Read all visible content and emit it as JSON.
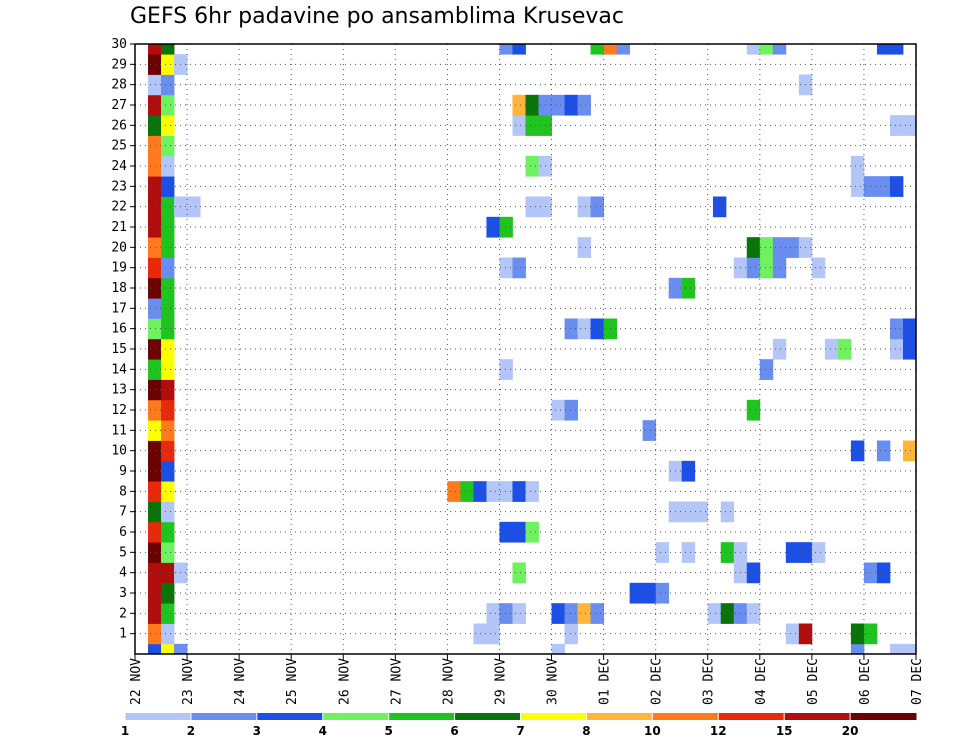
{
  "chart_data": {
    "type": "heatmap",
    "title": "GEFS 6hr padavine po ansamblima Krusevac",
    "xlabel": "",
    "ylabel": "",
    "x_ticks": [
      "22 NOV",
      "23 NOV",
      "24 NOV",
      "25 NOV",
      "26 NOV",
      "27 NOV",
      "28 NOV",
      "29 NOV",
      "30 NOV",
      "01 DEC",
      "02 DEC",
      "03 DEC",
      "04 DEC",
      "05 DEC",
      "06 DEC",
      "07 DEC"
    ],
    "x_range": [
      0,
      15
    ],
    "y_ticks": [
      1,
      2,
      3,
      4,
      5,
      6,
      7,
      8,
      9,
      10,
      11,
      12,
      13,
      14,
      15,
      16,
      17,
      18,
      19,
      20,
      21,
      22,
      23,
      24,
      25,
      26,
      27,
      28,
      29,
      30
    ],
    "y_range": [
      0,
      30
    ],
    "grid": true,
    "colorbar": {
      "labels": [
        "1",
        "2",
        "3",
        "4",
        "5",
        "6",
        "7",
        "8",
        "10",
        "12",
        "15",
        "20"
      ],
      "colors": [
        "#b3c6f7",
        "#6a8ef0",
        "#1b4fe6",
        "#6ef25f",
        "#1fc41f",
        "#0a730a",
        "#ffff00",
        "#ffb43a",
        "#ff7a1a",
        "#e62a0a",
        "#b00d0d",
        "#6b0303"
      ]
    },
    "cells": [
      {
        "t": 0.25,
        "m": 0,
        "v": 3
      },
      {
        "t": 0.5,
        "m": 0,
        "v": 7
      },
      {
        "t": 0.75,
        "m": 0,
        "v": 2
      },
      {
        "t": 0.25,
        "m": 1,
        "v": 10
      },
      {
        "t": 0.5,
        "m": 1,
        "v": 1
      },
      {
        "t": 0.25,
        "m": 2,
        "v": 15
      },
      {
        "t": 0.5,
        "m": 2,
        "v": 5
      },
      {
        "t": 0.25,
        "m": 3,
        "v": 15
      },
      {
        "t": 0.5,
        "m": 3,
        "v": 6
      },
      {
        "t": 0.25,
        "m": 4,
        "v": 15
      },
      {
        "t": 0.5,
        "m": 4,
        "v": 15
      },
      {
        "t": 0.75,
        "m": 4,
        "v": 1
      },
      {
        "t": 0.25,
        "m": 5,
        "v": 20
      },
      {
        "t": 0.5,
        "m": 5,
        "v": 4
      },
      {
        "t": 0.25,
        "m": 6,
        "v": 12
      },
      {
        "t": 0.5,
        "m": 6,
        "v": 5
      },
      {
        "t": 0.25,
        "m": 7,
        "v": 6
      },
      {
        "t": 0.5,
        "m": 7,
        "v": 1
      },
      {
        "t": 0.25,
        "m": 8,
        "v": 12
      },
      {
        "t": 0.5,
        "m": 8,
        "v": 7
      },
      {
        "t": 0.25,
        "m": 9,
        "v": 20
      },
      {
        "t": 0.5,
        "m": 9,
        "v": 3
      },
      {
        "t": 0.25,
        "m": 10,
        "v": 20
      },
      {
        "t": 0.5,
        "m": 10,
        "v": 12
      },
      {
        "t": 0.25,
        "m": 11,
        "v": 7
      },
      {
        "t": 0.5,
        "m": 11,
        "v": 10
      },
      {
        "t": 0.25,
        "m": 12,
        "v": 10
      },
      {
        "t": 0.5,
        "m": 12,
        "v": 12
      },
      {
        "t": 0.25,
        "m": 13,
        "v": 20
      },
      {
        "t": 0.5,
        "m": 13,
        "v": 15
      },
      {
        "t": 0.25,
        "m": 14,
        "v": 5
      },
      {
        "t": 0.5,
        "m": 14,
        "v": 7
      },
      {
        "t": 0.25,
        "m": 15,
        "v": 20
      },
      {
        "t": 0.5,
        "m": 15,
        "v": 7
      },
      {
        "t": 0.25,
        "m": 16,
        "v": 4
      },
      {
        "t": 0.5,
        "m": 16,
        "v": 5
      },
      {
        "t": 0.25,
        "m": 17,
        "v": 2
      },
      {
        "t": 0.5,
        "m": 17,
        "v": 5
      },
      {
        "t": 0.25,
        "m": 18,
        "v": 20
      },
      {
        "t": 0.5,
        "m": 18,
        "v": 5
      },
      {
        "t": 0.25,
        "m": 19,
        "v": 12
      },
      {
        "t": 0.5,
        "m": 19,
        "v": 2
      },
      {
        "t": 0.25,
        "m": 20,
        "v": 10
      },
      {
        "t": 0.5,
        "m": 20,
        "v": 5
      },
      {
        "t": 0.25,
        "m": 21,
        "v": 15
      },
      {
        "t": 0.5,
        "m": 21,
        "v": 5
      },
      {
        "t": 0.25,
        "m": 22,
        "v": 15
      },
      {
        "t": 0.5,
        "m": 22,
        "v": 5
      },
      {
        "t": 0.75,
        "m": 22,
        "v": 1
      },
      {
        "t": 1.0,
        "m": 22,
        "v": 1
      },
      {
        "t": 0.25,
        "m": 23,
        "v": 15
      },
      {
        "t": 0.5,
        "m": 23,
        "v": 3
      },
      {
        "t": 0.25,
        "m": 24,
        "v": 10
      },
      {
        "t": 0.5,
        "m": 24,
        "v": 1
      },
      {
        "t": 0.25,
        "m": 25,
        "v": 10
      },
      {
        "t": 0.5,
        "m": 25,
        "v": 4
      },
      {
        "t": 0.25,
        "m": 26,
        "v": 6
      },
      {
        "t": 0.5,
        "m": 26,
        "v": 7
      },
      {
        "t": 0.25,
        "m": 27,
        "v": 15
      },
      {
        "t": 0.5,
        "m": 27,
        "v": 4
      },
      {
        "t": 0.25,
        "m": 28,
        "v": 1
      },
      {
        "t": 0.5,
        "m": 28,
        "v": 2
      },
      {
        "t": 0.25,
        "m": 29,
        "v": 20
      },
      {
        "t": 0.5,
        "m": 29,
        "v": 7
      },
      {
        "t": 0.75,
        "m": 29,
        "v": 1
      },
      {
        "t": 0.25,
        "m": 30,
        "v": 15
      },
      {
        "t": 0.5,
        "m": 30,
        "v": 6
      },
      {
        "t": 6.5,
        "m": 1,
        "v": 1
      },
      {
        "t": 6.75,
        "m": 1,
        "v": 1
      },
      {
        "t": 6.75,
        "m": 2,
        "v": 1
      },
      {
        "t": 7.0,
        "m": 2,
        "v": 2
      },
      {
        "t": 7.25,
        "m": 2,
        "v": 1
      },
      {
        "t": 7.0,
        "m": 6,
        "v": 3
      },
      {
        "t": 7.25,
        "m": 6,
        "v": 3
      },
      {
        "t": 7.5,
        "m": 6,
        "v": 4
      },
      {
        "t": 7.25,
        "m": 4,
        "v": 4
      },
      {
        "t": 6.0,
        "m": 8,
        "v": 10
      },
      {
        "t": 6.25,
        "m": 8,
        "v": 5
      },
      {
        "t": 6.5,
        "m": 8,
        "v": 3
      },
      {
        "t": 6.75,
        "m": 8,
        "v": 1
      },
      {
        "t": 7.0,
        "m": 8,
        "v": 1
      },
      {
        "t": 7.25,
        "m": 8,
        "v": 3
      },
      {
        "t": 7.5,
        "m": 8,
        "v": 1
      },
      {
        "t": 7.0,
        "m": 14,
        "v": 1
      },
      {
        "t": 7.0,
        "m": 19,
        "v": 1
      },
      {
        "t": 7.25,
        "m": 19,
        "v": 2
      },
      {
        "t": 6.75,
        "m": 21,
        "v": 3
      },
      {
        "t": 7.0,
        "m": 21,
        "v": 5
      },
      {
        "t": 7.5,
        "m": 22,
        "v": 1
      },
      {
        "t": 7.75,
        "m": 22,
        "v": 1
      },
      {
        "t": 7.5,
        "m": 24,
        "v": 4
      },
      {
        "t": 7.75,
        "m": 24,
        "v": 1
      },
      {
        "t": 7.25,
        "m": 26,
        "v": 1
      },
      {
        "t": 7.5,
        "m": 26,
        "v": 5
      },
      {
        "t": 7.75,
        "m": 26,
        "v": 5
      },
      {
        "t": 7.25,
        "m": 27,
        "v": 8
      },
      {
        "t": 7.5,
        "m": 27,
        "v": 6
      },
      {
        "t": 7.75,
        "m": 27,
        "v": 2
      },
      {
        "t": 8.0,
        "m": 27,
        "v": 2
      },
      {
        "t": 8.25,
        "m": 27,
        "v": 3
      },
      {
        "t": 8.5,
        "m": 27,
        "v": 2
      },
      {
        "t": 7.0,
        "m": 30,
        "v": 2
      },
      {
        "t": 7.25,
        "m": 30,
        "v": 3
      },
      {
        "t": 8.0,
        "m": 0,
        "v": 1
      },
      {
        "t": 8.25,
        "m": 1,
        "v": 1
      },
      {
        "t": 8.0,
        "m": 2,
        "v": 3
      },
      {
        "t": 8.25,
        "m": 2,
        "v": 2
      },
      {
        "t": 8.5,
        "m": 2,
        "v": 8
      },
      {
        "t": 8.75,
        "m": 2,
        "v": 2
      },
      {
        "t": 8.0,
        "m": 12,
        "v": 1
      },
      {
        "t": 8.25,
        "m": 12,
        "v": 2
      },
      {
        "t": 8.25,
        "m": 16,
        "v": 2
      },
      {
        "t": 8.5,
        "m": 16,
        "v": 1
      },
      {
        "t": 8.75,
        "m": 16,
        "v": 3
      },
      {
        "t": 9.0,
        "m": 16,
        "v": 5
      },
      {
        "t": 8.5,
        "m": 20,
        "v": 1
      },
      {
        "t": 8.5,
        "m": 22,
        "v": 1
      },
      {
        "t": 8.75,
        "m": 22,
        "v": 2
      },
      {
        "t": 8.75,
        "m": 30,
        "v": 5
      },
      {
        "t": 9.0,
        "m": 30,
        "v": 10
      },
      {
        "t": 9.25,
        "m": 30,
        "v": 2
      },
      {
        "t": 9.5,
        "m": 3,
        "v": 3
      },
      {
        "t": 9.75,
        "m": 3,
        "v": 3
      },
      {
        "t": 10.0,
        "m": 3,
        "v": 2
      },
      {
        "t": 10.0,
        "m": 5,
        "v": 1
      },
      {
        "t": 9.75,
        "m": 11,
        "v": 2
      },
      {
        "t": 10.25,
        "m": 9,
        "v": 1
      },
      {
        "t": 10.5,
        "m": 9,
        "v": 3
      },
      {
        "t": 10.25,
        "m": 7,
        "v": 1
      },
      {
        "t": 10.5,
        "m": 7,
        "v": 1
      },
      {
        "t": 10.75,
        "m": 7,
        "v": 1
      },
      {
        "t": 10.5,
        "m": 5,
        "v": 1
      },
      {
        "t": 10.25,
        "m": 18,
        "v": 2
      },
      {
        "t": 10.5,
        "m": 18,
        "v": 5
      },
      {
        "t": 11.0,
        "m": 2,
        "v": 1
      },
      {
        "t": 11.25,
        "m": 2,
        "v": 6
      },
      {
        "t": 11.5,
        "m": 2,
        "v": 2
      },
      {
        "t": 11.75,
        "m": 2,
        "v": 1
      },
      {
        "t": 11.25,
        "m": 5,
        "v": 5
      },
      {
        "t": 11.5,
        "m": 5,
        "v": 1
      },
      {
        "t": 11.5,
        "m": 4,
        "v": 1
      },
      {
        "t": 11.75,
        "m": 4,
        "v": 3
      },
      {
        "t": 11.25,
        "m": 7,
        "v": 1
      },
      {
        "t": 11.75,
        "m": 12,
        "v": 5
      },
      {
        "t": 12.0,
        "m": 14,
        "v": 2
      },
      {
        "t": 11.1,
        "m": 22,
        "v": 3
      },
      {
        "t": 11.5,
        "m": 19,
        "v": 1
      },
      {
        "t": 11.75,
        "m": 19,
        "v": 2
      },
      {
        "t": 12.0,
        "m": 19,
        "v": 4
      },
      {
        "t": 12.25,
        "m": 19,
        "v": 2
      },
      {
        "t": 11.75,
        "m": 20,
        "v": 6
      },
      {
        "t": 12.0,
        "m": 20,
        "v": 4
      },
      {
        "t": 12.25,
        "m": 20,
        "v": 2
      },
      {
        "t": 12.5,
        "m": 20,
        "v": 2
      },
      {
        "t": 12.75,
        "m": 20,
        "v": 1
      },
      {
        "t": 13.0,
        "m": 19,
        "v": 1
      },
      {
        "t": 12.25,
        "m": 15,
        "v": 1
      },
      {
        "t": 12.5,
        "m": 5,
        "v": 3
      },
      {
        "t": 12.75,
        "m": 5,
        "v": 3
      },
      {
        "t": 13.0,
        "m": 5,
        "v": 1
      },
      {
        "t": 12.5,
        "m": 1,
        "v": 1
      },
      {
        "t": 12.75,
        "m": 1,
        "v": 15
      },
      {
        "t": 12.75,
        "m": 28,
        "v": 1
      },
      {
        "t": 11.75,
        "m": 30,
        "v": 1
      },
      {
        "t": 12.0,
        "m": 30,
        "v": 4
      },
      {
        "t": 12.25,
        "m": 30,
        "v": 2
      },
      {
        "t": 13.25,
        "m": 15,
        "v": 1
      },
      {
        "t": 13.5,
        "m": 15,
        "v": 4
      },
      {
        "t": 13.75,
        "m": 0,
        "v": 2
      },
      {
        "t": 13.75,
        "m": 1,
        "v": 6
      },
      {
        "t": 14.0,
        "m": 1,
        "v": 5
      },
      {
        "t": 13.75,
        "m": 10,
        "v": 3
      },
      {
        "t": 14.25,
        "m": 10,
        "v": 2
      },
      {
        "t": 14.75,
        "m": 10,
        "v": 8
      },
      {
        "t": 14.0,
        "m": 4,
        "v": 2
      },
      {
        "t": 14.25,
        "m": 4,
        "v": 3
      },
      {
        "t": 13.75,
        "m": 23,
        "v": 1
      },
      {
        "t": 14.0,
        "m": 23,
        "v": 2
      },
      {
        "t": 14.25,
        "m": 23,
        "v": 2
      },
      {
        "t": 14.5,
        "m": 23,
        "v": 3
      },
      {
        "t": 13.75,
        "m": 24,
        "v": 1
      },
      {
        "t": 14.5,
        "m": 0,
        "v": 1
      },
      {
        "t": 14.75,
        "m": 0,
        "v": 1
      },
      {
        "t": 14.5,
        "m": 15,
        "v": 1
      },
      {
        "t": 14.75,
        "m": 15,
        "v": 3
      },
      {
        "t": 14.5,
        "m": 16,
        "v": 2
      },
      {
        "t": 14.75,
        "m": 16,
        "v": 3
      },
      {
        "t": 14.5,
        "m": 26,
        "v": 1
      },
      {
        "t": 14.75,
        "m": 26,
        "v": 1
      },
      {
        "t": 14.25,
        "m": 30,
        "v": 3
      },
      {
        "t": 14.5,
        "m": 30,
        "v": 3
      }
    ]
  }
}
